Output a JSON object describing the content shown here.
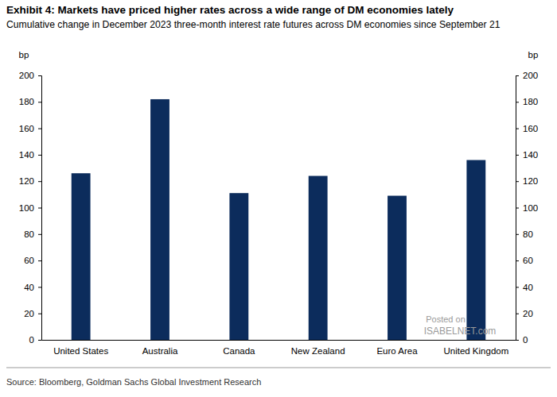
{
  "chart_data": {
    "type": "bar",
    "title": "Exhibit 4: Markets have priced higher rates across a wide range of DM economies lately",
    "subtitle": "Cumulative change in December 2023 three-month interest rate futures across DM economies since September 21",
    "y_label": "bp",
    "y2_label": "bp",
    "categories": [
      "United States",
      "Australia",
      "Canada",
      "New Zealand",
      "Euro Area",
      "United Kingdom"
    ],
    "values": [
      126,
      182,
      111,
      124,
      109,
      136
    ],
    "color": "#0c2c5c",
    "ylim": [
      0,
      200
    ],
    "yticks": [
      0,
      20,
      40,
      60,
      80,
      100,
      120,
      140,
      160,
      180,
      200
    ],
    "y2lim": [
      0,
      200
    ],
    "y2ticks": [
      0,
      20,
      40,
      60,
      80,
      100,
      120,
      140,
      160,
      180,
      200
    ],
    "grid": false,
    "source": "Source: Bloomberg, Goldman Sachs Global Investment Research",
    "annotations": [
      "Posted on",
      "ISABELNET.com"
    ]
  }
}
